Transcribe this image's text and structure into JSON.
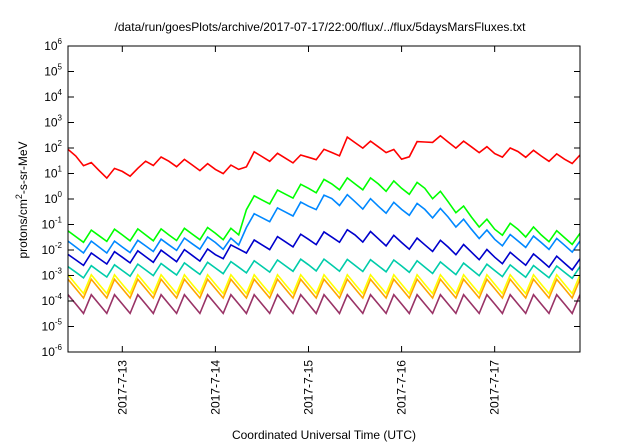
{
  "chart_data": {
    "type": "line",
    "title": "/data/run/goesPlots/archive/2017-07-17/22:00/flux/../flux/5daysMarsFluxes.txt",
    "xlabel": "Coordinated Universal Time (UTC)",
    "ylabel_parts": [
      "protons/cm",
      "2",
      "-s-sr-MeV"
    ],
    "y_scale": "log",
    "ylim": [
      1e-06,
      1000000.0
    ],
    "xlim": [
      "2017-07-12T10:00",
      "2017-07-17T22:00"
    ],
    "y_ticks": [
      {
        "base": "10",
        "exp": "-6",
        "value": 1e-06
      },
      {
        "base": "10",
        "exp": "-5",
        "value": 1e-05
      },
      {
        "base": "10",
        "exp": "-4",
        "value": 0.0001
      },
      {
        "base": "10",
        "exp": "-3",
        "value": 0.001
      },
      {
        "base": "10",
        "exp": "-2",
        "value": 0.01
      },
      {
        "base": "10",
        "exp": "-1",
        "value": 0.1
      },
      {
        "base": "10",
        "exp": "0",
        "value": 1
      },
      {
        "base": "10",
        "exp": "1",
        "value": 10
      },
      {
        "base": "10",
        "exp": "2",
        "value": 100
      },
      {
        "base": "10",
        "exp": "3",
        "value": 1000
      },
      {
        "base": "10",
        "exp": "4",
        "value": 10000
      },
      {
        "base": "10",
        "exp": "5",
        "value": 100000
      },
      {
        "base": "10",
        "exp": "6",
        "value": 1000000
      }
    ],
    "x_ticks": [
      {
        "label": "2017-7-13",
        "value": "2017-07-13T00:00"
      },
      {
        "label": "2017-7-14",
        "value": "2017-07-14T00:00"
      },
      {
        "label": "2017-7-15",
        "value": "2017-07-15T00:00"
      },
      {
        "label": "2017-7-16",
        "value": "2017-07-16T00:00"
      },
      {
        "label": "2017-7-17",
        "value": "2017-07-17T00:00"
      }
    ],
    "grid": false,
    "legend": "none",
    "series": [
      {
        "color": "#ff0000",
        "points": [
          [
            "2017-07-12T10:00",
            50
          ],
          [
            "2017-07-12T12:00",
            40
          ],
          [
            "2017-07-12T16:00",
            15
          ],
          [
            "2017-07-12T20:00",
            8
          ],
          [
            "2017-07-13T00:00",
            10
          ],
          [
            "2017-07-13T04:00",
            9
          ],
          [
            "2017-07-13T06:00",
            25
          ],
          [
            "2017-07-13T12:00",
            25
          ],
          [
            "2017-07-13T18:00",
            18
          ],
          [
            "2017-07-14T00:00",
            12
          ],
          [
            "2017-07-14T06:00",
            12
          ],
          [
            "2017-07-14T10:00",
            40
          ],
          [
            "2017-07-14T16:00",
            35
          ],
          [
            "2017-07-14T22:00",
            30
          ],
          [
            "2017-07-15T04:00",
            50
          ],
          [
            "2017-07-15T08:00",
            60
          ],
          [
            "2017-07-15T10:00",
            150
          ],
          [
            "2017-07-15T14:00",
            120
          ],
          [
            "2017-07-15T20:00",
            80
          ],
          [
            "2017-07-16T00:00",
            30
          ],
          [
            "2017-07-16T04:00",
            100
          ],
          [
            "2017-07-16T08:00",
            200
          ],
          [
            "2017-07-16T14:00",
            120
          ],
          [
            "2017-07-16T20:00",
            80
          ],
          [
            "2017-07-17T00:00",
            50
          ],
          [
            "2017-07-17T06:00",
            60
          ],
          [
            "2017-07-17T12:00",
            40
          ],
          [
            "2017-07-17T18:00",
            30
          ],
          [
            "2017-07-17T22:00",
            30
          ]
        ]
      },
      {
        "color": "#00ff00",
        "points": [
          [
            "2017-07-12T10:00",
            0.025
          ],
          [
            "2017-07-13T00:00",
            0.03
          ],
          [
            "2017-07-13T12:00",
            0.03
          ],
          [
            "2017-07-14T00:00",
            0.035
          ],
          [
            "2017-07-14T06:00",
            0.03
          ],
          [
            "2017-07-14T08:00",
            0.5
          ],
          [
            "2017-07-14T16:00",
            1.0
          ],
          [
            "2017-07-15T00:00",
            2
          ],
          [
            "2017-07-15T06:00",
            3
          ],
          [
            "2017-07-15T12:00",
            3
          ],
          [
            "2017-07-15T18:00",
            3
          ],
          [
            "2017-07-16T00:00",
            2
          ],
          [
            "2017-07-16T06:00",
            2
          ],
          [
            "2017-07-16T12:00",
            0.6
          ],
          [
            "2017-07-16T18:00",
            0.15
          ],
          [
            "2017-07-17T00:00",
            0.05
          ],
          [
            "2017-07-17T06:00",
            0.05
          ],
          [
            "2017-07-17T12:00",
            0.03
          ],
          [
            "2017-07-17T22:00",
            0.02
          ]
        ]
      },
      {
        "color": "#0088ff",
        "points": [
          [
            "2017-07-12T10:00",
            0.01
          ],
          [
            "2017-07-13T00:00",
            0.01
          ],
          [
            "2017-07-14T00:00",
            0.015
          ],
          [
            "2017-07-14T06:00",
            0.012
          ],
          [
            "2017-07-14T08:00",
            0.1
          ],
          [
            "2017-07-14T16:00",
            0.2
          ],
          [
            "2017-07-15T00:00",
            0.4
          ],
          [
            "2017-07-15T06:00",
            0.8
          ],
          [
            "2017-07-15T12:00",
            0.6
          ],
          [
            "2017-07-15T18:00",
            0.4
          ],
          [
            "2017-07-16T00:00",
            0.3
          ],
          [
            "2017-07-16T06:00",
            0.3
          ],
          [
            "2017-07-16T12:00",
            0.15
          ],
          [
            "2017-07-16T18:00",
            0.05
          ],
          [
            "2017-07-17T00:00",
            0.02
          ],
          [
            "2017-07-17T12:00",
            0.015
          ],
          [
            "2017-07-17T22:00",
            0.01
          ]
        ]
      },
      {
        "color": "#0000cc",
        "points": [
          [
            "2017-07-12T10:00",
            0.003
          ],
          [
            "2017-07-13T00:00",
            0.004
          ],
          [
            "2017-07-14T00:00",
            0.005
          ],
          [
            "2017-07-14T08:00",
            0.01
          ],
          [
            "2017-07-14T16:00",
            0.015
          ],
          [
            "2017-07-15T00:00",
            0.02
          ],
          [
            "2017-07-15T12:00",
            0.03
          ],
          [
            "2017-07-16T00:00",
            0.015
          ],
          [
            "2017-07-16T12:00",
            0.01
          ],
          [
            "2017-07-17T00:00",
            0.004
          ],
          [
            "2017-07-17T12:00",
            0.003
          ],
          [
            "2017-07-17T22:00",
            0.002
          ]
        ]
      },
      {
        "color": "#00ccaa",
        "points": [
          [
            "2017-07-12T10:00",
            0.001
          ],
          [
            "2017-07-13T00:00",
            0.0012
          ],
          [
            "2017-07-14T00:00",
            0.0015
          ],
          [
            "2017-07-15T00:00",
            0.002
          ],
          [
            "2017-07-16T00:00",
            0.0018
          ],
          [
            "2017-07-17T00:00",
            0.0012
          ],
          [
            "2017-07-17T22:00",
            0.001
          ]
        ]
      },
      {
        "color": "#ffff00",
        "points": [
          [
            "2017-07-12T10:00",
            0.0003
          ],
          [
            "2017-07-13T00:00",
            0.0003
          ],
          [
            "2017-07-14T00:00",
            0.0003
          ],
          [
            "2017-07-15T00:00",
            0.0003
          ],
          [
            "2017-07-16T00:00",
            0.0003
          ],
          [
            "2017-07-17T00:00",
            0.0003
          ],
          [
            "2017-07-17T22:00",
            0.0003
          ]
        ]
      },
      {
        "color": "#ffa500",
        "points": [
          [
            "2017-07-12T10:00",
            0.0002
          ],
          [
            "2017-07-13T00:00",
            0.0002
          ],
          [
            "2017-07-14T00:00",
            0.0002
          ],
          [
            "2017-07-15T00:00",
            0.0002
          ],
          [
            "2017-07-16T00:00",
            0.0002
          ],
          [
            "2017-07-17T00:00",
            0.0002
          ],
          [
            "2017-07-17T22:00",
            0.0002
          ]
        ]
      },
      {
        "color": "#993366",
        "points": [
          [
            "2017-07-12T10:00",
            5e-05
          ],
          [
            "2017-07-13T00:00",
            5e-05
          ],
          [
            "2017-07-14T00:00",
            5e-05
          ],
          [
            "2017-07-15T00:00",
            5e-05
          ],
          [
            "2017-07-16T00:00",
            5e-05
          ],
          [
            "2017-07-17T00:00",
            5e-05
          ],
          [
            "2017-07-17T22:00",
            5e-05
          ]
        ]
      }
    ]
  }
}
